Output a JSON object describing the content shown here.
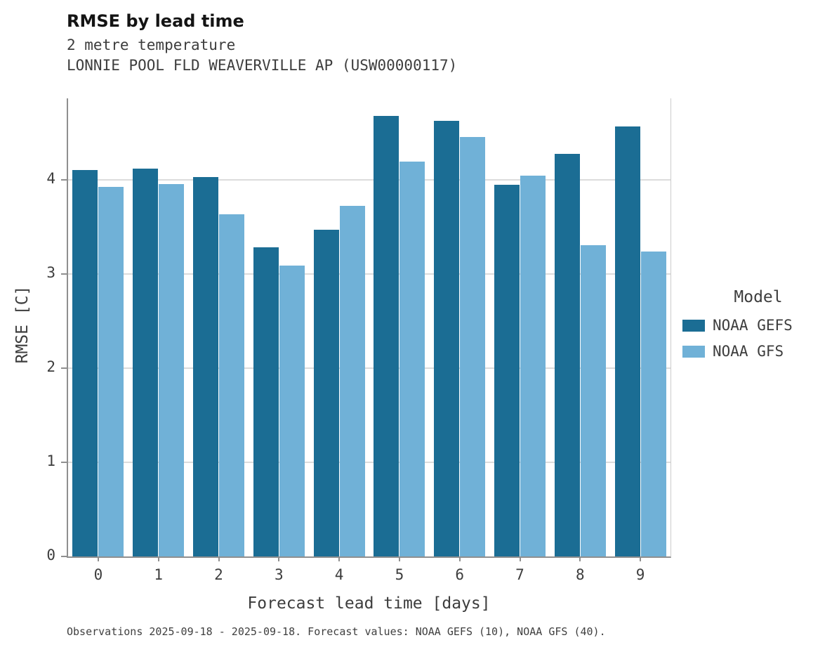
{
  "chart_data": {
    "type": "bar",
    "title": "RMSE by lead time",
    "subtitle_lines": [
      "2 metre temperature",
      "LONNIE POOL FLD WEAVERVILLE AP (USW00000117)"
    ],
    "xlabel": "Forecast lead time [days]",
    "ylabel": "RMSE [C]",
    "categories": [
      "0",
      "1",
      "2",
      "3",
      "4",
      "5",
      "6",
      "7",
      "8",
      "9"
    ],
    "yticks": [
      0,
      1,
      2,
      3,
      4
    ],
    "ylim": [
      0,
      4.87
    ],
    "grid": "horizontal",
    "legend_title": "Model",
    "legend_position": "right",
    "series": [
      {
        "name": "NOAA GEFS",
        "color": "#1b6d94",
        "values": [
          4.11,
          4.12,
          4.03,
          3.29,
          3.47,
          4.68,
          4.63,
          3.95,
          4.28,
          4.57
        ]
      },
      {
        "name": "NOAA GFS",
        "color": "#70b1d7",
        "values": [
          3.93,
          3.96,
          3.64,
          3.09,
          3.73,
          4.2,
          4.46,
          4.05,
          3.31,
          3.24
        ]
      }
    ],
    "footnote": "Observations 2025-09-18 - 2025-09-18. Forecast values: NOAA GEFS (10), NOAA GFS (40)."
  }
}
